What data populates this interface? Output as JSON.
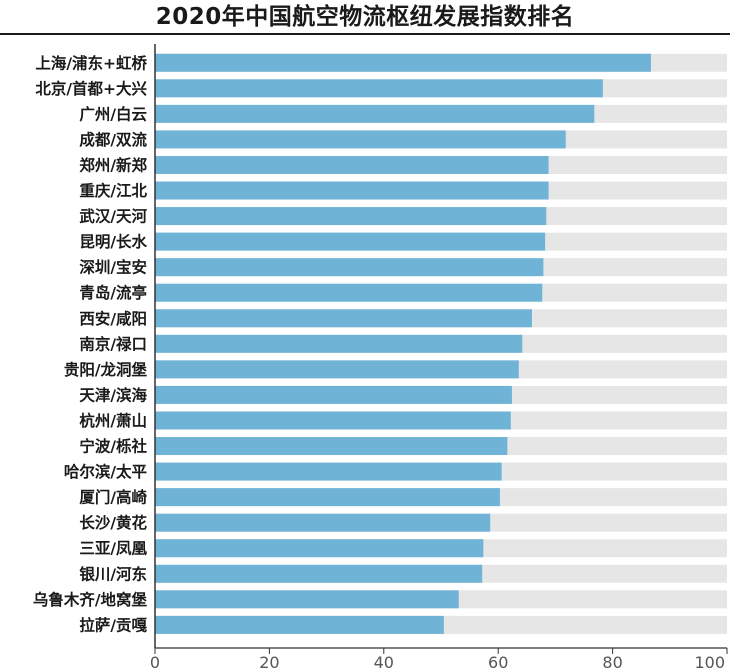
{
  "colors": {
    "bar": "#6fb3d6",
    "track": "#e6e6e6",
    "axis": "#333333",
    "text": "#1a1a1a"
  },
  "chart_data": {
    "type": "bar",
    "orientation": "horizontal",
    "title": "2020年中国航空物流枢纽发展指数排名",
    "xlim": [
      0,
      100
    ],
    "xticks": [
      0,
      20,
      40,
      60,
      80,
      100
    ],
    "grid": false,
    "categories": [
      "上海/浦东+虹桥",
      "北京/首都+大兴",
      "广州/白云",
      "成都/双流",
      "郑州/新郑",
      "重庆/江北",
      "武汉/天河",
      "昆明/长水",
      "深圳/宝安",
      "青岛/流亭",
      "西安/咸阳",
      "南京/禄口",
      "贵阳/龙洞堡",
      "天津/滨海",
      "杭州/萧山",
      "宁波/栎社",
      "哈尔滨/太平",
      "厦门/高崎",
      "长沙/黄花",
      "三亚/凤凰",
      "银川/河东",
      "乌鲁木齐/地窝堡",
      "拉萨/贡嘎"
    ],
    "values": [
      86.7,
      78.3,
      76.8,
      71.8,
      68.8,
      68.8,
      68.4,
      68.2,
      67.9,
      67.7,
      65.9,
      64.2,
      63.6,
      62.4,
      62.2,
      61.6,
      60.6,
      60.3,
      58.6,
      57.4,
      57.2,
      53.1,
      50.5
    ]
  }
}
